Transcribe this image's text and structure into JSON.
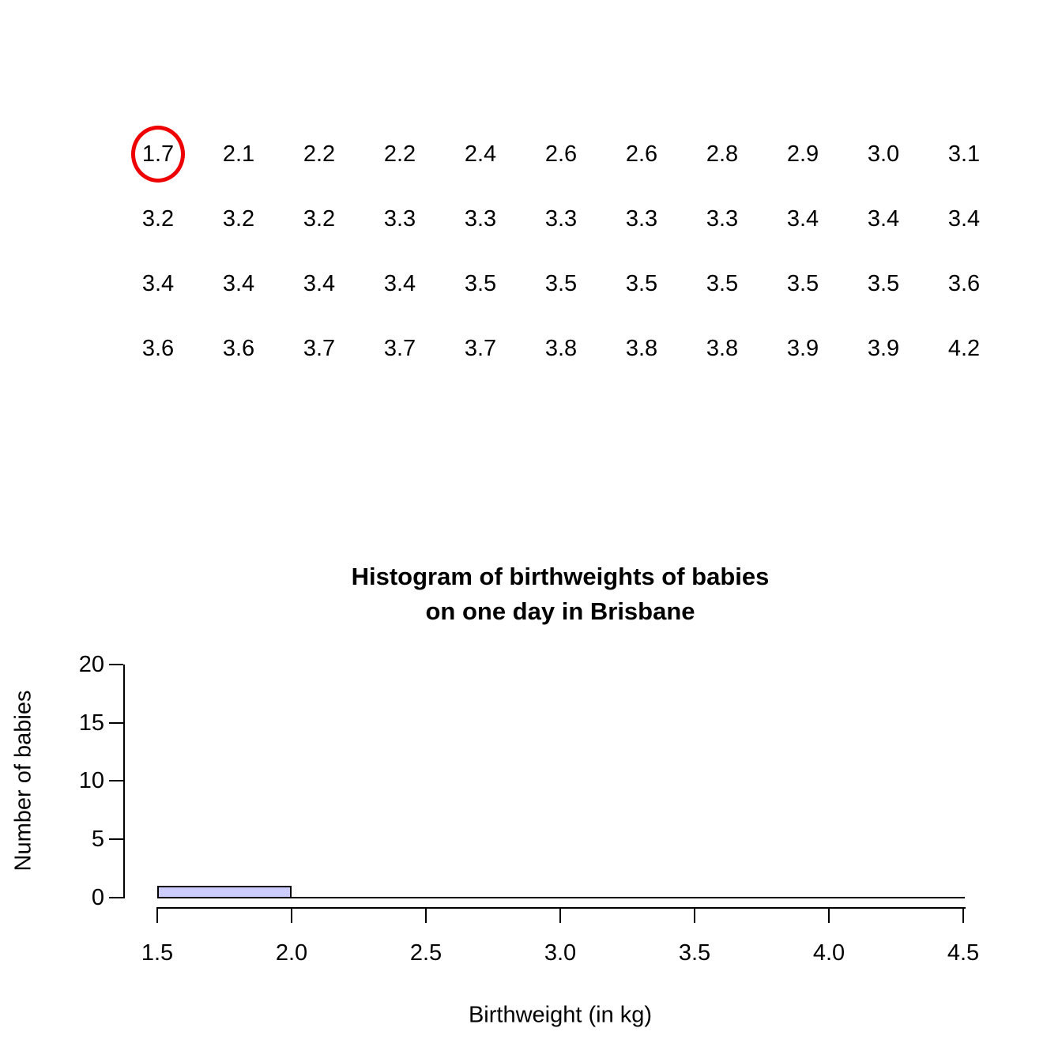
{
  "data_table": {
    "rows": [
      [
        "1.7",
        "2.1",
        "2.2",
        "2.2",
        "2.4",
        "2.6",
        "2.6",
        "2.8",
        "2.9",
        "3.0",
        "3.1"
      ],
      [
        "3.2",
        "3.2",
        "3.2",
        "3.3",
        "3.3",
        "3.3",
        "3.3",
        "3.3",
        "3.4",
        "3.4",
        "3.4"
      ],
      [
        "3.4",
        "3.4",
        "3.4",
        "3.4",
        "3.5",
        "3.5",
        "3.5",
        "3.5",
        "3.5",
        "3.5",
        "3.6"
      ],
      [
        "3.6",
        "3.6",
        "3.7",
        "3.7",
        "3.7",
        "3.8",
        "3.8",
        "3.8",
        "3.9",
        "3.9",
        "4.2"
      ]
    ],
    "highlighted_value": "1.7",
    "highlight_color": "#ee0000"
  },
  "chart_data": {
    "type": "bar",
    "title": "Histogram of birthweights of babies on one day in Brisbane",
    "title_lines": [
      "Histogram of birthweights of babies",
      "on one day in Brisbane"
    ],
    "xlabel": "Birthweight (in kg)",
    "ylabel": "Number of babies",
    "xlim": [
      1.5,
      4.5
    ],
    "ylim": [
      0,
      20
    ],
    "x_ticks": [
      "1.5",
      "2.0",
      "2.5",
      "3.0",
      "3.5",
      "4.0",
      "4.5"
    ],
    "y_ticks": [
      "0",
      "5",
      "10",
      "15",
      "20"
    ],
    "bins": [
      [
        1.5,
        2.0
      ],
      [
        2.0,
        2.5
      ],
      [
        2.5,
        3.0
      ],
      [
        3.0,
        3.5
      ],
      [
        3.5,
        4.0
      ],
      [
        4.0,
        4.5
      ]
    ],
    "counts": [
      1,
      0,
      0,
      0,
      0,
      0
    ],
    "bar_fill": "#ccccff",
    "bar_border": "#000000",
    "grid": false,
    "legend": false
  }
}
